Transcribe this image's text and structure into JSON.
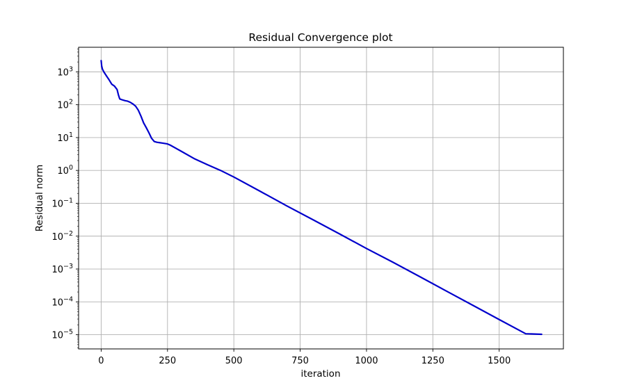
{
  "chart_data": {
    "type": "line",
    "title": "Residual Convergence plot",
    "xlabel": "iteration",
    "ylabel": "Residual norm",
    "y_scale": "log",
    "grid": true,
    "xlim": [
      -85,
      1742
    ],
    "ylim": [
      3.7e-06,
      5600.0
    ],
    "x_ticks": [
      0,
      250,
      500,
      750,
      1000,
      1250,
      1500
    ],
    "y_ticks": [
      {
        "value": 1000.0,
        "base": "10",
        "exp": "3"
      },
      {
        "value": 100.0,
        "base": "10",
        "exp": "2"
      },
      {
        "value": 10.0,
        "base": "10",
        "exp": "1"
      },
      {
        "value": 1.0,
        "base": "10",
        "exp": "0"
      },
      {
        "value": 0.1,
        "base": "10",
        "exp": "−1"
      },
      {
        "value": 0.01,
        "base": "10",
        "exp": "−2"
      },
      {
        "value": 0.001,
        "base": "10",
        "exp": "−3"
      },
      {
        "value": 0.0001,
        "base": "10",
        "exp": "−4"
      },
      {
        "value": 1e-05,
        "base": "10",
        "exp": "−5"
      }
    ],
    "series": [
      {
        "color": "#0000cc",
        "x": [
          0,
          2,
          5,
          10,
          20,
          30,
          40,
          50,
          60,
          65,
          70,
          80,
          90,
          100,
          110,
          120,
          130,
          140,
          150,
          160,
          170,
          180,
          190,
          200,
          210,
          220,
          230,
          240,
          250,
          260,
          300,
          350,
          400,
          450,
          500,
          600,
          700,
          800,
          900,
          1000,
          1100,
          1200,
          1300,
          1400,
          1500,
          1600,
          1660
        ],
        "y": [
          2200,
          1500,
          1200,
          1000,
          750,
          570,
          420,
          370,
          290,
          200,
          150,
          140,
          133,
          128,
          118,
          105,
          90,
          68,
          45,
          28,
          20,
          14,
          9.5,
          7.6,
          7.2,
          7.0,
          6.8,
          6.6,
          6.4,
          5.9,
          3.9,
          2.3,
          1.5,
          1.0,
          0.63,
          0.23,
          0.083,
          0.031,
          0.0115,
          0.0042,
          0.0016,
          0.00059,
          0.000215,
          7.9e-05,
          2.9e-05,
          1.07e-05,
          1.03e-05
        ]
      }
    ]
  }
}
